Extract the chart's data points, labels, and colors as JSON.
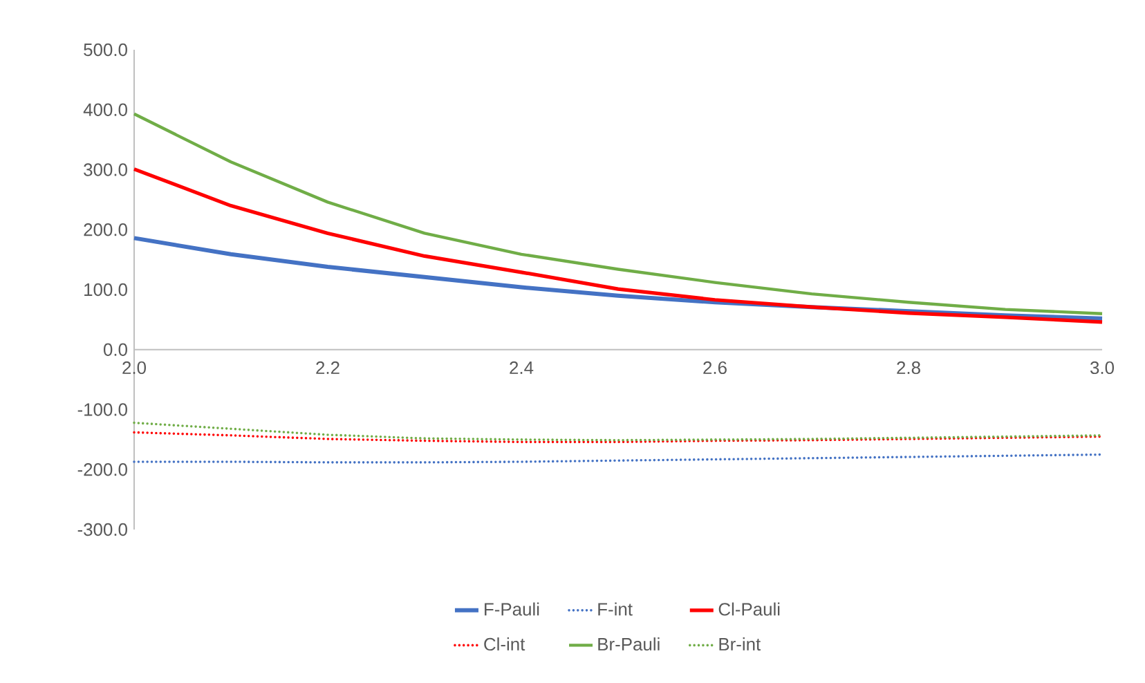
{
  "chart_data": {
    "type": "line",
    "x": [
      2.0,
      2.1,
      2.2,
      2.3,
      2.4,
      2.5,
      2.6,
      2.7,
      2.8,
      2.9,
      3.0
    ],
    "series": [
      {
        "name": "F-Pauli",
        "color": "#4472c4",
        "line_style": "solid",
        "values": [
          186,
          159,
          138,
          121,
          104,
          90,
          79,
          71,
          64,
          57,
          52
        ]
      },
      {
        "name": "F-int",
        "color": "#4472c4",
        "line_style": "dotted",
        "values": [
          -187,
          -187,
          -188,
          -188,
          -187,
          -185,
          -183,
          -181,
          -179,
          -177,
          -175
        ]
      },
      {
        "name": "Cl-Pauli",
        "color": "#ff0000",
        "line_style": "solid",
        "values": [
          301,
          240,
          194,
          156,
          129,
          101,
          83,
          71,
          61,
          54,
          46
        ]
      },
      {
        "name": "Cl-int",
        "color": "#ff0000",
        "line_style": "dotted",
        "values": [
          -138,
          -143,
          -149,
          -152,
          -154,
          -154,
          -152,
          -151,
          -149,
          -147,
          -145
        ]
      },
      {
        "name": "Br-Pauli",
        "color": "#70ad47",
        "line_style": "solid",
        "values": [
          393,
          313,
          246,
          194,
          159,
          134,
          112,
          93,
          79,
          67,
          60
        ]
      },
      {
        "name": "Br-int",
        "color": "#70ad47",
        "line_style": "dotted",
        "values": [
          -122,
          -132,
          -142,
          -148,
          -150,
          -151,
          -150,
          -149,
          -147,
          -145,
          -143
        ]
      }
    ],
    "xlim": [
      2.0,
      3.0
    ],
    "xticks": [
      {
        "value": 2.0,
        "label": "2.0"
      },
      {
        "value": 2.2,
        "label": "2.2"
      },
      {
        "value": 2.4,
        "label": "2.4"
      },
      {
        "value": 2.6,
        "label": "2.6"
      },
      {
        "value": 2.8,
        "label": "2.8"
      },
      {
        "value": 3.0,
        "label": "3.0"
      }
    ],
    "ylim": [
      -300,
      500
    ],
    "yticks": [
      {
        "value": -300,
        "label": "-300.0"
      },
      {
        "value": -200,
        "label": "-200.0"
      },
      {
        "value": -100,
        "label": "-100.0"
      },
      {
        "value": 0,
        "label": "0.0"
      },
      {
        "value": 100,
        "label": "100.0"
      },
      {
        "value": 200,
        "label": "200.0"
      },
      {
        "value": 300,
        "label": "300.0"
      },
      {
        "value": 400,
        "label": "400.0"
      },
      {
        "value": 500,
        "label": "500.0"
      }
    ],
    "legend": "bottom"
  }
}
